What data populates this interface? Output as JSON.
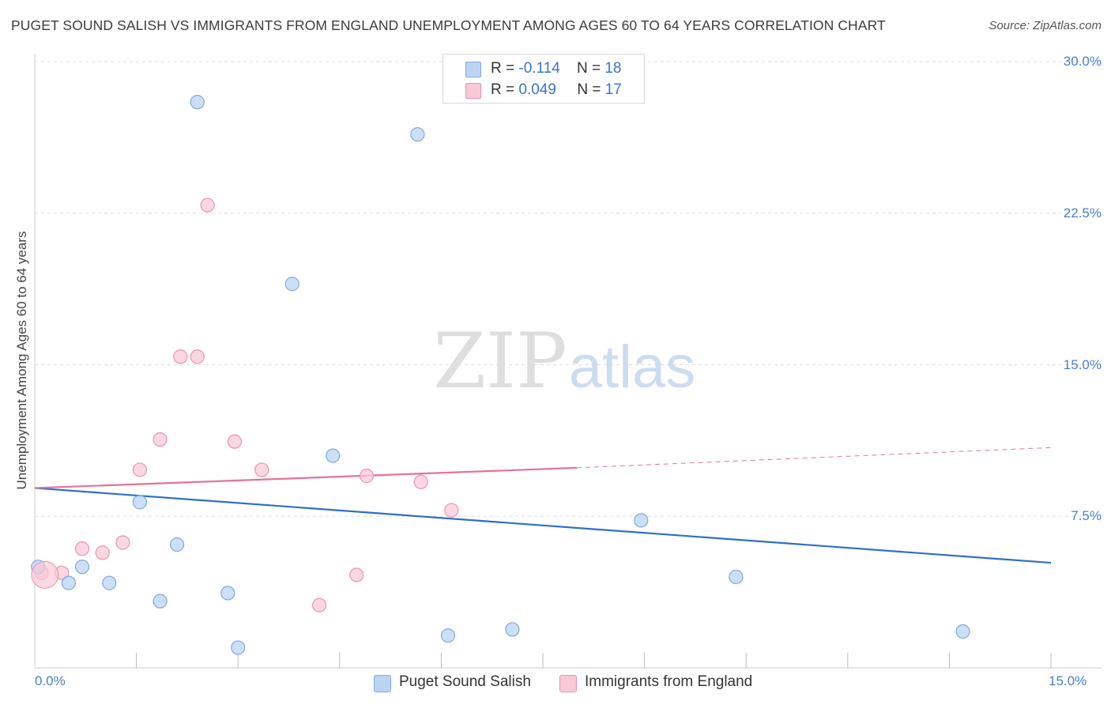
{
  "header": {
    "title": "PUGET SOUND SALISH VS IMMIGRANTS FROM ENGLAND UNEMPLOYMENT AMONG AGES 60 TO 64 YEARS CORRELATION CHART",
    "source": "Source: ZipAtlas.com"
  },
  "watermark": {
    "zip": "ZIP",
    "atlas": "atlas"
  },
  "legend": {
    "rows": [
      {
        "r_label": "R = ",
        "r_value": "-0.114",
        "n_label": "N = ",
        "n_value": "18"
      },
      {
        "r_label": "R = ",
        "r_value": "0.049",
        "n_label": "N = ",
        "n_value": "17"
      }
    ]
  },
  "colors": {
    "blue_fill": "#bcd4f3",
    "blue_stroke": "#7fa9df",
    "blue_line": "#2e6fcb",
    "pink_fill": "#f8c9d7",
    "pink_stroke": "#e994b0",
    "pink_line": "#e3739a",
    "grid": "#dddddd",
    "tick_text": "#4a7fc9"
  },
  "chart_data": {
    "type": "scatter",
    "title": "PUGET SOUND SALISH VS IMMIGRANTS FROM ENGLAND UNEMPLOYMENT AMONG AGES 60 TO 64 YEARS CORRELATION CHART",
    "xlabel": "",
    "ylabel": "Unemployment Among Ages 60 to 64 years",
    "xlim": [
      0,
      15
    ],
    "ylim": [
      0,
      30
    ],
    "x_tick_labels": [
      "0.0%",
      "15.0%"
    ],
    "y_ticks": [
      7.5,
      15.0,
      22.5,
      30.0
    ],
    "y_tick_labels": [
      "7.5%",
      "15.0%",
      "22.5%",
      "30.0%"
    ],
    "grid": true,
    "legend_position": "top-center",
    "series": [
      {
        "name": "Puget Sound Salish",
        "r": -0.114,
        "n": 18,
        "points": [
          [
            0.05,
            5.0
          ],
          [
            0.5,
            4.2
          ],
          [
            1.1,
            4.2
          ],
          [
            1.55,
            8.2
          ],
          [
            1.85,
            3.3
          ],
          [
            2.1,
            6.1
          ],
          [
            2.4,
            28.0
          ],
          [
            2.85,
            3.7
          ],
          [
            3.0,
            1.0
          ],
          [
            3.8,
            19.0
          ],
          [
            4.4,
            10.5
          ],
          [
            5.65,
            26.4
          ],
          [
            6.1,
            1.6
          ],
          [
            7.05,
            1.9
          ],
          [
            8.95,
            7.3
          ],
          [
            10.35,
            4.5
          ],
          [
            13.7,
            1.8
          ],
          [
            0.7,
            5.0
          ]
        ],
        "trend": {
          "x": [
            0,
            15
          ],
          "y": [
            8.9,
            5.2
          ]
        }
      },
      {
        "name": "Immigrants from England",
        "r": 0.049,
        "n": 17,
        "points": [
          [
            0.1,
            4.7
          ],
          [
            0.4,
            4.7
          ],
          [
            0.7,
            5.9
          ],
          [
            1.0,
            5.7
          ],
          [
            1.3,
            6.2
          ],
          [
            1.55,
            9.8
          ],
          [
            1.85,
            11.3
          ],
          [
            2.15,
            15.4
          ],
          [
            2.4,
            15.4
          ],
          [
            2.55,
            22.9
          ],
          [
            2.95,
            11.2
          ],
          [
            3.35,
            9.8
          ],
          [
            4.2,
            3.1
          ],
          [
            4.75,
            4.6
          ],
          [
            4.9,
            9.5
          ],
          [
            5.7,
            9.2
          ],
          [
            6.15,
            7.8
          ]
        ],
        "trend": {
          "x": [
            0,
            8.0
          ],
          "y": [
            8.9,
            9.9
          ]
        },
        "trend_extension": {
          "x": [
            8.0,
            15
          ],
          "y": [
            9.9,
            10.9
          ]
        }
      }
    ]
  },
  "bottom_legend": [
    {
      "label": "Puget Sound Salish"
    },
    {
      "label": "Immigrants from England"
    }
  ]
}
